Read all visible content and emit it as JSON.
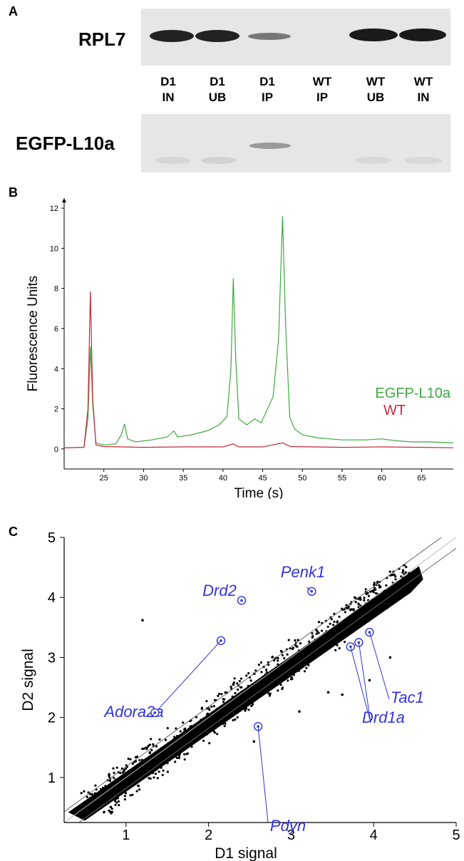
{
  "panels": {
    "a": "A",
    "b": "B",
    "c": "C"
  },
  "blot": {
    "top_label": "RPL7",
    "bottom_label": "EGFP-L10a",
    "lanes": [
      {
        "line1": "D1",
        "line2": "IN"
      },
      {
        "line1": "D1",
        "line2": "UB"
      },
      {
        "line1": "D1",
        "line2": "IP"
      },
      {
        "line1": "WT",
        "line2": "IP"
      },
      {
        "line1": "WT",
        "line2": "UB"
      },
      {
        "line1": "WT",
        "line2": "IN"
      }
    ]
  },
  "chart_data": [
    {
      "type": "line",
      "xlabel": "Time (s)",
      "ylabel": "Fluorescence Units",
      "xlim": [
        20,
        69
      ],
      "ylim": [
        -1,
        12.5
      ],
      "x_ticks": [
        "25",
        "30",
        "35",
        "40",
        "45",
        "50",
        "55",
        "60",
        "65"
      ],
      "y_ticks": [
        "0",
        "2",
        "4",
        "6",
        "8",
        "10",
        "12"
      ],
      "series": [
        {
          "name": "EGFP-L10a",
          "color": "#3fa83f",
          "points": [
            [
              20,
              0.05
            ],
            [
              22.5,
              0.08
            ],
            [
              23.0,
              1.5
            ],
            [
              23.3,
              5.1
            ],
            [
              23.6,
              2.2
            ],
            [
              24.0,
              0.3
            ],
            [
              25,
              0.2
            ],
            [
              26.5,
              0.25
            ],
            [
              27.2,
              0.7
            ],
            [
              27.6,
              1.25
            ],
            [
              28.0,
              0.5
            ],
            [
              29,
              0.35
            ],
            [
              31,
              0.45
            ],
            [
              33,
              0.6
            ],
            [
              33.8,
              0.9
            ],
            [
              34.3,
              0.6
            ],
            [
              36,
              0.7
            ],
            [
              38,
              0.9
            ],
            [
              39.5,
              1.2
            ],
            [
              40.5,
              1.6
            ],
            [
              41.0,
              4.0
            ],
            [
              41.3,
              8.5
            ],
            [
              41.6,
              4.5
            ],
            [
              42.0,
              1.5
            ],
            [
              43,
              1.2
            ],
            [
              44,
              1.5
            ],
            [
              44.8,
              1.3
            ],
            [
              45.5,
              1.9
            ],
            [
              46.3,
              2.6
            ],
            [
              47.0,
              5.5
            ],
            [
              47.5,
              11.6
            ],
            [
              47.9,
              6.0
            ],
            [
              48.4,
              1.6
            ],
            [
              49,
              1.0
            ],
            [
              50,
              0.7
            ],
            [
              52,
              0.55
            ],
            [
              55,
              0.45
            ],
            [
              58,
              0.45
            ],
            [
              60,
              0.5
            ],
            [
              62,
              0.4
            ],
            [
              64,
              0.35
            ],
            [
              66,
              0.35
            ],
            [
              69,
              0.3
            ]
          ]
        },
        {
          "name": "WT",
          "color": "#c8283c",
          "points": [
            [
              20,
              0.05
            ],
            [
              22.5,
              0.08
            ],
            [
              23.0,
              2.0
            ],
            [
              23.3,
              7.85
            ],
            [
              23.6,
              2.5
            ],
            [
              24.0,
              0.2
            ],
            [
              25,
              0.12
            ],
            [
              30,
              0.08
            ],
            [
              35,
              0.1
            ],
            [
              40,
              0.1
            ],
            [
              41.3,
              0.25
            ],
            [
              42,
              0.1
            ],
            [
              45,
              0.1
            ],
            [
              47.5,
              0.3
            ],
            [
              48.5,
              0.12
            ],
            [
              55,
              0.08
            ],
            [
              60,
              0.1
            ],
            [
              65,
              0.08
            ],
            [
              69,
              0.06
            ]
          ]
        }
      ]
    },
    {
      "type": "scatter",
      "xlabel": "D1 signal",
      "ylabel": "D2 signal",
      "xlim": [
        0.25,
        5
      ],
      "ylim": [
        0.25,
        5
      ],
      "x_ticks": [
        "1",
        "2",
        "3",
        "4",
        "5"
      ],
      "y_ticks": [
        "1",
        "2",
        "3",
        "4",
        "5"
      ],
      "highlighted_genes": [
        {
          "name": "Drd2",
          "x": 2.4,
          "y": 3.95
        },
        {
          "name": "Penk1",
          "x": 3.25,
          "y": 4.1
        },
        {
          "name": "Adora2a",
          "x": 2.15,
          "y": 3.28
        },
        {
          "name": "Adora2a",
          "x": 1.35,
          "y": 2.08
        },
        {
          "name": "Tac1",
          "x": 3.95,
          "y": 3.42
        },
        {
          "name": "Drd1a",
          "x": 3.82,
          "y": 3.25
        },
        {
          "name": "Drd1a",
          "x": 3.72,
          "y": 3.18
        },
        {
          "name": "Pdyn",
          "x": 2.6,
          "y": 1.85
        }
      ]
    }
  ],
  "colors": {
    "gene_label": "#3333dd",
    "egfp": "#3fa83f",
    "wt": "#c8283c"
  }
}
